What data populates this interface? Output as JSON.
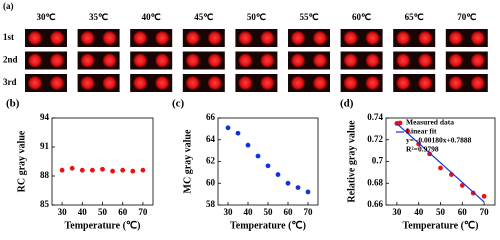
{
  "panel_a": {
    "label": "(a)",
    "columns": [
      "30℃",
      "35℃",
      "40℃",
      "45℃",
      "50℃",
      "55℃",
      "60℃",
      "65℃",
      "70℃"
    ],
    "rows": [
      "1st",
      "2nd",
      "3rd"
    ]
  },
  "chart_data": [
    {
      "type": "scatter",
      "panel": "(b)",
      "xlabel": "Temperature (℃)",
      "ylabel": "RC gray value",
      "x": [
        30,
        35,
        40,
        45,
        50,
        55,
        60,
        65,
        70
      ],
      "xlim": [
        25,
        75
      ],
      "xticks": [
        30,
        40,
        50,
        60,
        70
      ],
      "ylim": [
        85,
        94
      ],
      "yticks": [
        85,
        88,
        91,
        94
      ],
      "series": [
        {
          "type": "scatter",
          "color": "#ee1111",
          "values": [
            88.6,
            88.8,
            88.6,
            88.6,
            88.7,
            88.5,
            88.6,
            88.5,
            88.6
          ]
        }
      ]
    },
    {
      "type": "scatter",
      "panel": "(c)",
      "xlabel": "Temperature (℃)",
      "ylabel": "MC gray value",
      "x": [
        30,
        35,
        40,
        45,
        50,
        55,
        60,
        65,
        70
      ],
      "xlim": [
        25,
        75
      ],
      "xticks": [
        30,
        40,
        50,
        60,
        70
      ],
      "ylim": [
        58,
        66
      ],
      "yticks": [
        58,
        60,
        62,
        64,
        66
      ],
      "series": [
        {
          "type": "scatter",
          "color": "#1133dd",
          "values": [
            65.1,
            64.6,
            63.5,
            62.5,
            61.6,
            60.8,
            60.0,
            59.6,
            59.2
          ]
        }
      ]
    },
    {
      "type": "scatter",
      "panel": "(d)",
      "xlabel": "Temperature (℃)",
      "ylabel": "Relative gray value",
      "x": [
        30,
        35,
        40,
        45,
        50,
        55,
        60,
        65,
        70
      ],
      "xlim": [
        25,
        75
      ],
      "xticks": [
        30,
        40,
        50,
        60,
        70
      ],
      "ylim": [
        0.66,
        0.74
      ],
      "yticks": [
        0.66,
        0.68,
        0.7,
        0.72,
        0.74
      ],
      "series": [
        {
          "name": "Measured data",
          "type": "scatter",
          "color": "#ee1111",
          "values": [
            0.735,
            0.728,
            0.716,
            0.707,
            0.694,
            0.688,
            0.678,
            0.671,
            0.668
          ]
        },
        {
          "name": "Linear fit",
          "type": "line",
          "color": "#1133dd",
          "x": [
            30,
            70
          ],
          "values": [
            0.7348,
            0.6628
          ]
        }
      ],
      "annotations": [
        "y= -0.00180x+0.7888",
        "R²=0.9798"
      ],
      "legend": "upper right"
    }
  ]
}
